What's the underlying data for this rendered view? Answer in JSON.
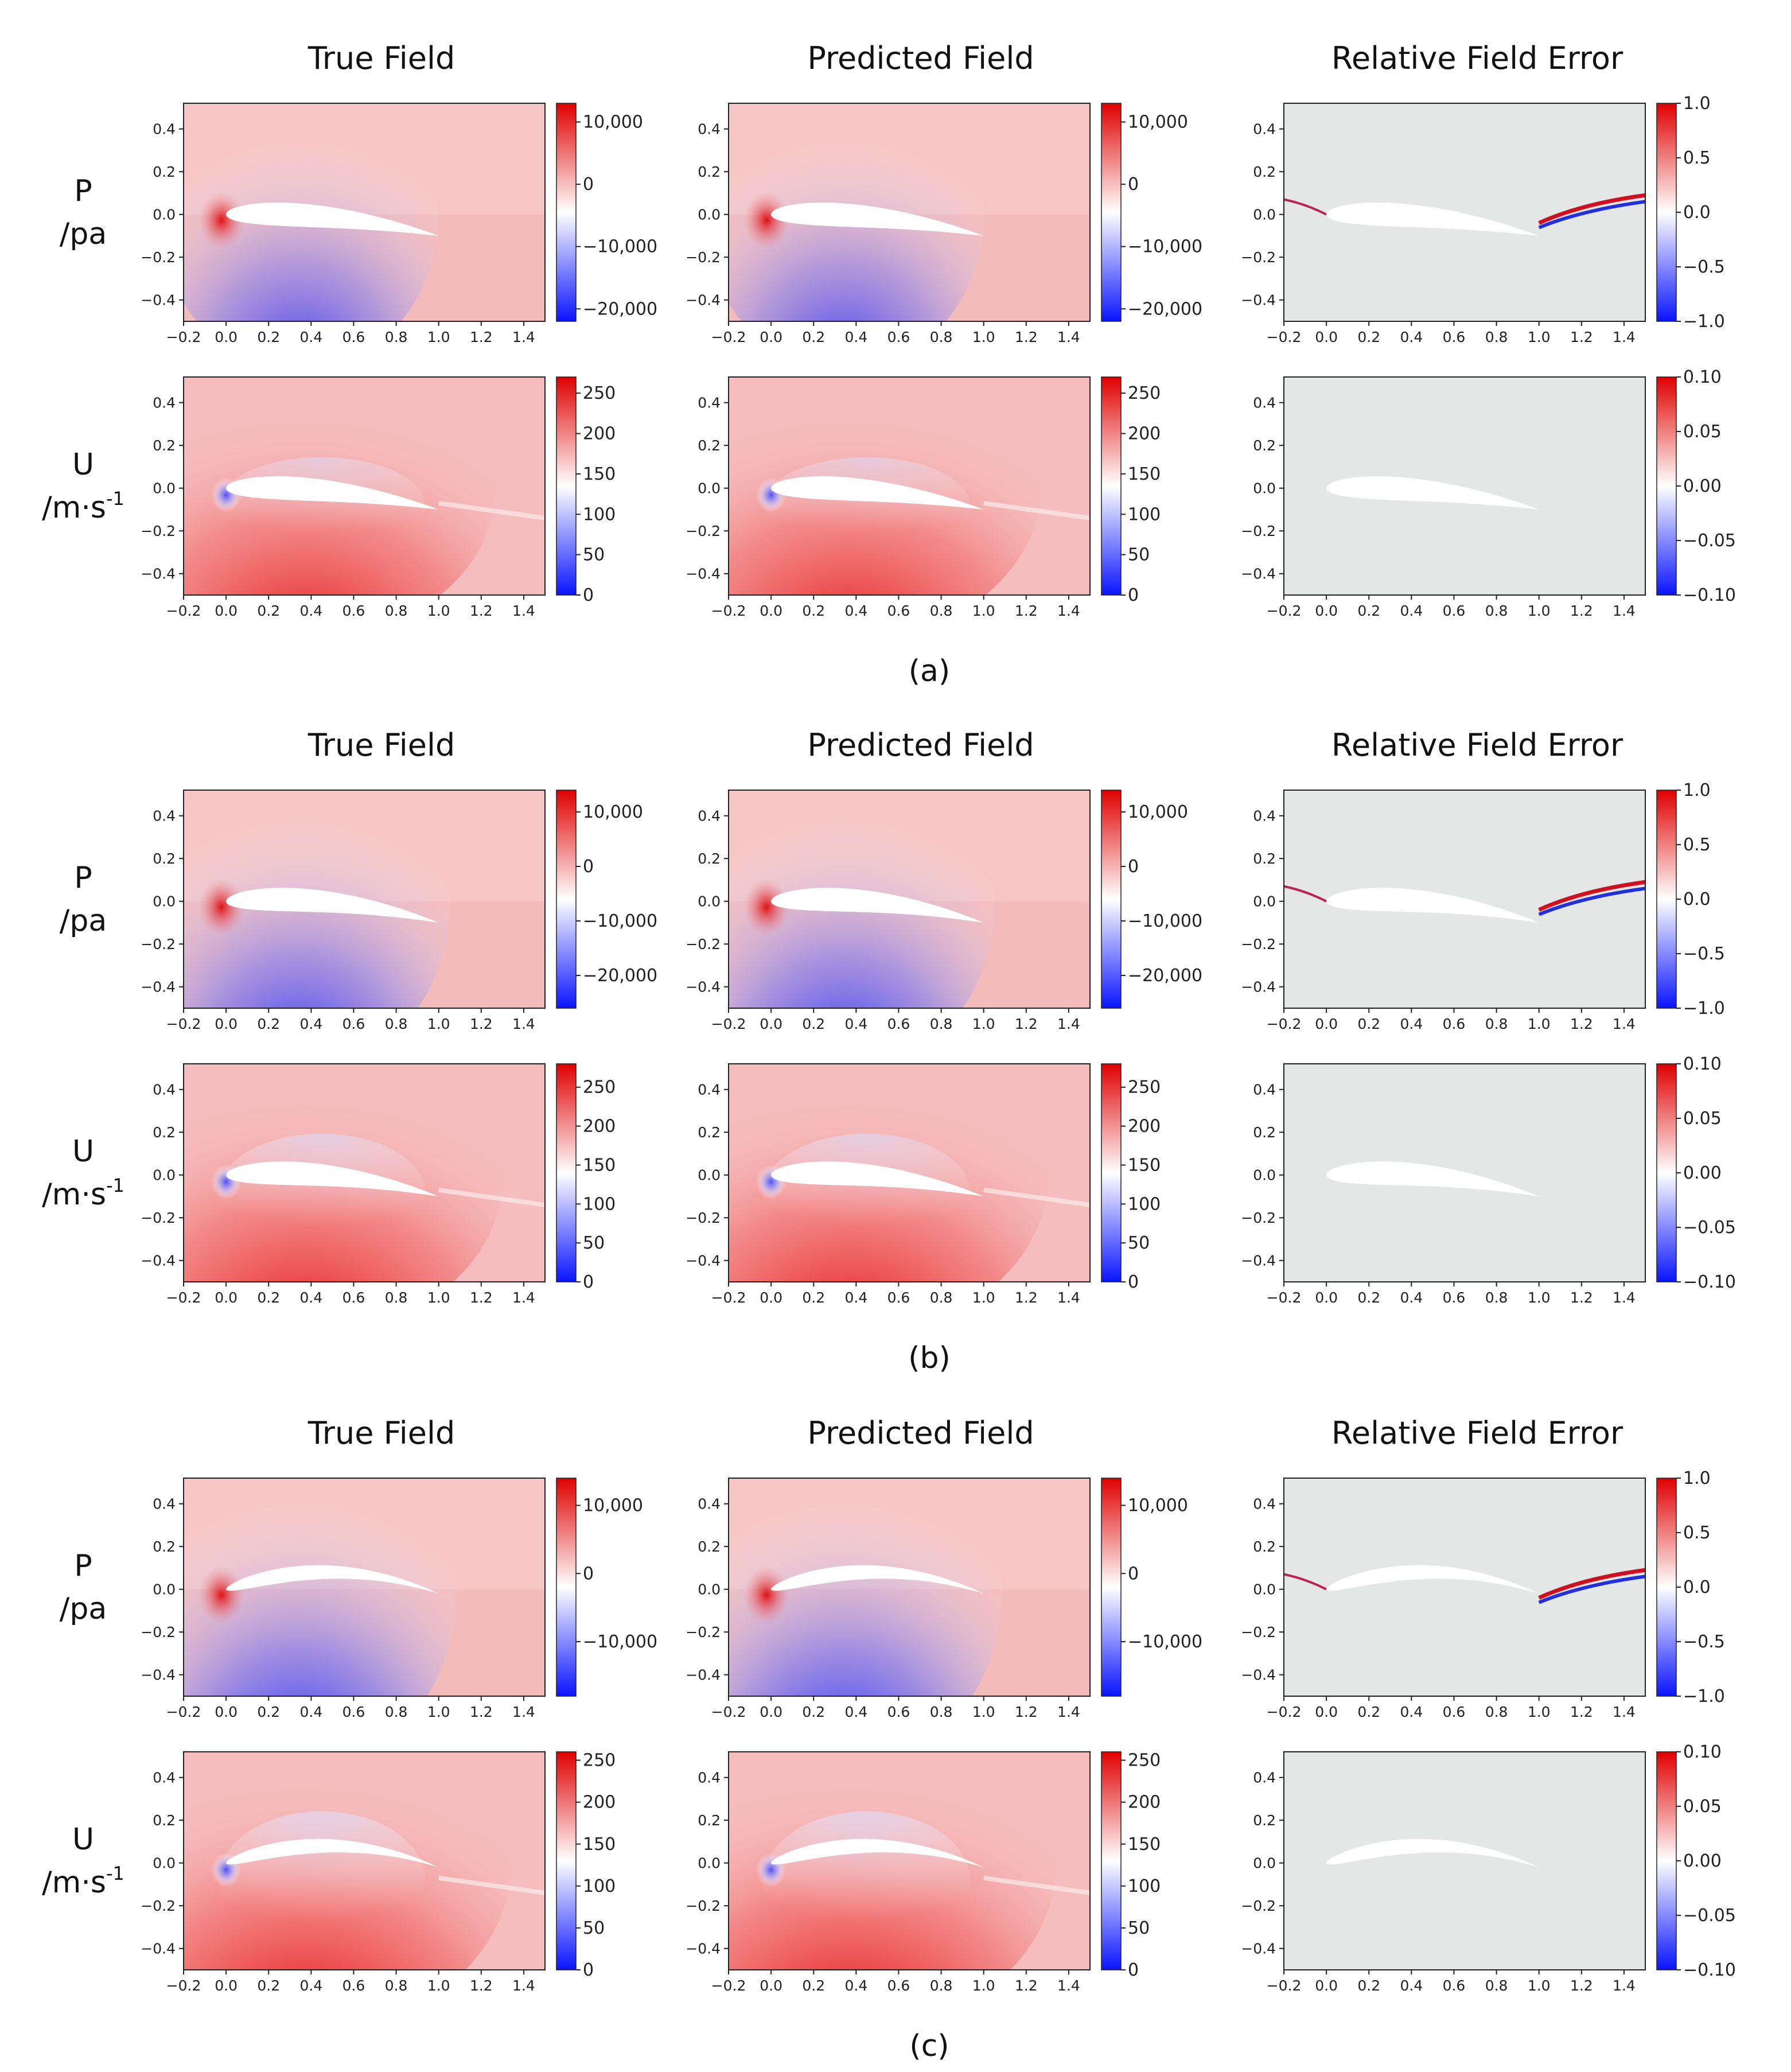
{
  "figure": {
    "caption_labels": [
      "(a)",
      "(b)",
      "(c)"
    ],
    "column_titles": [
      "True Field",
      "Predicted Field",
      "Relative Field Error"
    ],
    "row_labels": [
      {
        "var": "P",
        "unit": "/pa"
      },
      {
        "var": "U",
        "unit": "/m·s",
        "exponent": "-1"
      }
    ]
  },
  "colors": {
    "diverging_low": "#0a14ff",
    "diverging_mid": "#ffffff",
    "diverging_high": "#e00000",
    "error_background": "#e4e7e5",
    "airfoil": "#ffffff"
  },
  "chart_data": [
    {
      "type": "heatmap",
      "panel": "(a)",
      "column": "True Field",
      "field": "P",
      "unit": "pa",
      "xlim": [
        -0.2,
        1.5
      ],
      "ylim": [
        -0.5,
        0.52
      ],
      "xticks": [
        "-0.2",
        "0.0",
        "0.2",
        "0.4",
        "0.6",
        "0.8",
        "1.0",
        "1.2",
        "1.4"
      ],
      "yticks": [
        "0.4",
        "0.2",
        "0.0",
        "-0.2",
        "-0.4"
      ],
      "colorbar": {
        "min": -22000,
        "max": 13000,
        "ticks": [
          "10,000",
          "0",
          "-10,000",
          "-20,000"
        ],
        "tick_values": [
          10000,
          0,
          -10000,
          -20000
        ]
      }
    },
    {
      "type": "heatmap",
      "panel": "(a)",
      "column": "Predicted Field",
      "field": "P",
      "unit": "pa",
      "xlim": [
        -0.2,
        1.5
      ],
      "ylim": [
        -0.5,
        0.52
      ],
      "xticks": [
        "-0.2",
        "0.0",
        "0.2",
        "0.4",
        "0.6",
        "0.8",
        "1.0",
        "1.2",
        "1.4"
      ],
      "yticks": [
        "0.4",
        "0.2",
        "0.0",
        "-0.2",
        "-0.4"
      ],
      "colorbar": {
        "min": -22000,
        "max": 13000,
        "ticks": [
          "10,000",
          "0",
          "-10,000",
          "-20,000"
        ],
        "tick_values": [
          10000,
          0,
          -10000,
          -20000
        ]
      }
    },
    {
      "type": "heatmap",
      "panel": "(a)",
      "column": "Relative Field Error",
      "field": "P",
      "xlim": [
        -0.2,
        1.5
      ],
      "ylim": [
        -0.5,
        0.52
      ],
      "xticks": [
        "-0.2",
        "0.0",
        "0.2",
        "0.4",
        "0.6",
        "0.8",
        "1.0",
        "1.2",
        "1.4"
      ],
      "yticks": [
        "0.4",
        "0.2",
        "0.0",
        "-0.2",
        "-0.4"
      ],
      "colorbar": {
        "min": -1.0,
        "max": 1.0,
        "ticks": [
          "1.0",
          "0.5",
          "0.0",
          "-0.5",
          "-1.0"
        ],
        "tick_values": [
          1.0,
          0.5,
          0.0,
          -0.5,
          -1.0
        ]
      }
    },
    {
      "type": "heatmap",
      "panel": "(a)",
      "column": "True Field",
      "field": "U",
      "unit": "m/s",
      "xlim": [
        -0.2,
        1.5
      ],
      "ylim": [
        -0.5,
        0.52
      ],
      "xticks": [
        "-0.2",
        "0.0",
        "0.2",
        "0.4",
        "0.6",
        "0.8",
        "1.0",
        "1.2",
        "1.4"
      ],
      "yticks": [
        "0.4",
        "0.2",
        "0.0",
        "-0.2",
        "-0.4"
      ],
      "colorbar": {
        "min": 0,
        "max": 270,
        "ticks": [
          "250",
          "200",
          "150",
          "100",
          "50",
          "0"
        ],
        "tick_values": [
          250,
          200,
          150,
          100,
          50,
          0
        ]
      }
    },
    {
      "type": "heatmap",
      "panel": "(a)",
      "column": "Predicted Field",
      "field": "U",
      "unit": "m/s",
      "xlim": [
        -0.2,
        1.5
      ],
      "ylim": [
        -0.5,
        0.52
      ],
      "xticks": [
        "-0.2",
        "0.0",
        "0.2",
        "0.4",
        "0.6",
        "0.8",
        "1.0",
        "1.2",
        "1.4"
      ],
      "yticks": [
        "0.4",
        "0.2",
        "0.0",
        "-0.2",
        "-0.4"
      ],
      "colorbar": {
        "min": 0,
        "max": 270,
        "ticks": [
          "250",
          "200",
          "150",
          "100",
          "50",
          "0"
        ],
        "tick_values": [
          250,
          200,
          150,
          100,
          50,
          0
        ]
      }
    },
    {
      "type": "heatmap",
      "panel": "(a)",
      "column": "Relative Field Error",
      "field": "U",
      "xlim": [
        -0.2,
        1.5
      ],
      "ylim": [
        -0.5,
        0.52
      ],
      "xticks": [
        "-0.2",
        "0.0",
        "0.2",
        "0.4",
        "0.6",
        "0.8",
        "1.0",
        "1.2",
        "1.4"
      ],
      "yticks": [
        "0.4",
        "0.2",
        "0.0",
        "-0.2",
        "-0.4"
      ],
      "colorbar": {
        "min": -0.1,
        "max": 0.1,
        "ticks": [
          "0.10",
          "0.05",
          "0.00",
          "-0.05",
          "-0.10"
        ],
        "tick_values": [
          0.1,
          0.05,
          0.0,
          -0.05,
          -0.1
        ]
      }
    },
    {
      "type": "heatmap",
      "panel": "(b)",
      "column": "True Field",
      "field": "P",
      "unit": "pa",
      "xlim": [
        -0.2,
        1.5
      ],
      "ylim": [
        -0.5,
        0.52
      ],
      "xticks": [
        "-0.2",
        "0.0",
        "0.2",
        "0.4",
        "0.6",
        "0.8",
        "1.0",
        "1.2",
        "1.4"
      ],
      "yticks": [
        "0.4",
        "0.2",
        "0.0",
        "-0.2",
        "-0.4"
      ],
      "colorbar": {
        "min": -26000,
        "max": 14000,
        "ticks": [
          "10,000",
          "0",
          "-10,000",
          "-20,000"
        ],
        "tick_values": [
          10000,
          0,
          -10000,
          -20000
        ]
      }
    },
    {
      "type": "heatmap",
      "panel": "(b)",
      "column": "Predicted Field",
      "field": "P",
      "unit": "pa",
      "xlim": [
        -0.2,
        1.5
      ],
      "ylim": [
        -0.5,
        0.52
      ],
      "xticks": [
        "-0.2",
        "0.0",
        "0.2",
        "0.4",
        "0.6",
        "0.8",
        "1.0",
        "1.2",
        "1.4"
      ],
      "yticks": [
        "0.4",
        "0.2",
        "0.0",
        "-0.2",
        "-0.4"
      ],
      "colorbar": {
        "min": -26000,
        "max": 14000,
        "ticks": [
          "10,000",
          "0",
          "-10,000",
          "-20,000"
        ],
        "tick_values": [
          10000,
          0,
          -10000,
          -20000
        ]
      }
    },
    {
      "type": "heatmap",
      "panel": "(b)",
      "column": "Relative Field Error",
      "field": "P",
      "xlim": [
        -0.2,
        1.5
      ],
      "ylim": [
        -0.5,
        0.52
      ],
      "xticks": [
        "-0.2",
        "0.0",
        "0.2",
        "0.4",
        "0.6",
        "0.8",
        "1.0",
        "1.2",
        "1.4"
      ],
      "yticks": [
        "0.4",
        "0.2",
        "0.0",
        "-0.2",
        "-0.4"
      ],
      "colorbar": {
        "min": -1.0,
        "max": 1.0,
        "ticks": [
          "1.0",
          "0.5",
          "0.0",
          "-0.5",
          "-1.0"
        ],
        "tick_values": [
          1.0,
          0.5,
          0.0,
          -0.5,
          -1.0
        ]
      }
    },
    {
      "type": "heatmap",
      "panel": "(b)",
      "column": "True Field",
      "field": "U",
      "unit": "m/s",
      "xlim": [
        -0.2,
        1.5
      ],
      "ylim": [
        -0.5,
        0.52
      ],
      "xticks": [
        "-0.2",
        "0.0",
        "0.2",
        "0.4",
        "0.6",
        "0.8",
        "1.0",
        "1.2",
        "1.4"
      ],
      "yticks": [
        "0.4",
        "0.2",
        "0.0",
        "-0.2",
        "-0.4"
      ],
      "colorbar": {
        "min": 0,
        "max": 280,
        "ticks": [
          "250",
          "200",
          "150",
          "100",
          "50",
          "0"
        ],
        "tick_values": [
          250,
          200,
          150,
          100,
          50,
          0
        ]
      }
    },
    {
      "type": "heatmap",
      "panel": "(b)",
      "column": "Predicted Field",
      "field": "U",
      "unit": "m/s",
      "xlim": [
        -0.2,
        1.5
      ],
      "ylim": [
        -0.5,
        0.52
      ],
      "xticks": [
        "-0.2",
        "0.0",
        "0.2",
        "0.4",
        "0.6",
        "0.8",
        "1.0",
        "1.2",
        "1.4"
      ],
      "yticks": [
        "0.4",
        "0.2",
        "0.0",
        "-0.2",
        "-0.4"
      ],
      "colorbar": {
        "min": 0,
        "max": 280,
        "ticks": [
          "250",
          "200",
          "150",
          "100",
          "50",
          "0"
        ],
        "tick_values": [
          250,
          200,
          150,
          100,
          50,
          0
        ]
      }
    },
    {
      "type": "heatmap",
      "panel": "(b)",
      "column": "Relative Field Error",
      "field": "U",
      "xlim": [
        -0.2,
        1.5
      ],
      "ylim": [
        -0.5,
        0.52
      ],
      "xticks": [
        "-0.2",
        "0.0",
        "0.2",
        "0.4",
        "0.6",
        "0.8",
        "1.0",
        "1.2",
        "1.4"
      ],
      "yticks": [
        "0.4",
        "0.2",
        "0.0",
        "-0.2",
        "-0.4"
      ],
      "colorbar": {
        "min": -0.1,
        "max": 0.1,
        "ticks": [
          "0.10",
          "0.05",
          "0.00",
          "-0.05",
          "-0.10"
        ],
        "tick_values": [
          0.1,
          0.05,
          0.0,
          -0.05,
          -0.1
        ]
      }
    },
    {
      "type": "heatmap",
      "panel": "(c)",
      "column": "True Field",
      "field": "P",
      "unit": "pa",
      "xlim": [
        -0.2,
        1.5
      ],
      "ylim": [
        -0.5,
        0.52
      ],
      "xticks": [
        "-0.2",
        "0.0",
        "0.2",
        "0.4",
        "0.6",
        "0.8",
        "1.0",
        "1.2",
        "1.4"
      ],
      "yticks": [
        "0.4",
        "0.2",
        "0.0",
        "-0.2",
        "-0.4"
      ],
      "colorbar": {
        "min": -18000,
        "max": 14000,
        "ticks": [
          "10,000",
          "0",
          "-10,000"
        ],
        "tick_values": [
          10000,
          0,
          -10000
        ]
      }
    },
    {
      "type": "heatmap",
      "panel": "(c)",
      "column": "Predicted Field",
      "field": "P",
      "unit": "pa",
      "xlim": [
        -0.2,
        1.5
      ],
      "ylim": [
        -0.5,
        0.52
      ],
      "xticks": [
        "-0.2",
        "0.0",
        "0.2",
        "0.4",
        "0.6",
        "0.8",
        "1.0",
        "1.2",
        "1.4"
      ],
      "yticks": [
        "0.4",
        "0.2",
        "0.0",
        "-0.2",
        "-0.4"
      ],
      "colorbar": {
        "min": -18000,
        "max": 14000,
        "ticks": [
          "10,000",
          "0",
          "-10,000"
        ],
        "tick_values": [
          10000,
          0,
          -10000
        ]
      }
    },
    {
      "type": "heatmap",
      "panel": "(c)",
      "column": "Relative Field Error",
      "field": "P",
      "xlim": [
        -0.2,
        1.5
      ],
      "ylim": [
        -0.5,
        0.52
      ],
      "xticks": [
        "-0.2",
        "0.0",
        "0.2",
        "0.4",
        "0.6",
        "0.8",
        "1.0",
        "1.2",
        "1.4"
      ],
      "yticks": [
        "0.4",
        "0.2",
        "0.0",
        "-0.2",
        "-0.4"
      ],
      "colorbar": {
        "min": -1.0,
        "max": 1.0,
        "ticks": [
          "1.0",
          "0.5",
          "0.0",
          "-0.5",
          "-1.0"
        ],
        "tick_values": [
          1.0,
          0.5,
          0.0,
          -0.5,
          -1.0
        ]
      }
    },
    {
      "type": "heatmap",
      "panel": "(c)",
      "column": "True Field",
      "field": "U",
      "unit": "m/s",
      "xlim": [
        -0.2,
        1.5
      ],
      "ylim": [
        -0.5,
        0.52
      ],
      "xticks": [
        "-0.2",
        "0.0",
        "0.2",
        "0.4",
        "0.6",
        "0.8",
        "1.0",
        "1.2",
        "1.4"
      ],
      "yticks": [
        "0.4",
        "0.2",
        "0.0",
        "-0.2",
        "-0.4"
      ],
      "colorbar": {
        "min": 0,
        "max": 260,
        "ticks": [
          "250",
          "200",
          "150",
          "100",
          "50",
          "0"
        ],
        "tick_values": [
          250,
          200,
          150,
          100,
          50,
          0
        ]
      }
    },
    {
      "type": "heatmap",
      "panel": "(c)",
      "column": "Predicted Field",
      "field": "U",
      "unit": "m/s",
      "xlim": [
        -0.2,
        1.5
      ],
      "ylim": [
        -0.5,
        0.52
      ],
      "xticks": [
        "-0.2",
        "0.0",
        "0.2",
        "0.4",
        "0.6",
        "0.8",
        "1.0",
        "1.2",
        "1.4"
      ],
      "yticks": [
        "0.4",
        "0.2",
        "0.0",
        "-0.2",
        "-0.4"
      ],
      "colorbar": {
        "min": 0,
        "max": 260,
        "ticks": [
          "250",
          "200",
          "150",
          "100",
          "50",
          "0"
        ],
        "tick_values": [
          250,
          200,
          150,
          100,
          50,
          0
        ]
      }
    },
    {
      "type": "heatmap",
      "panel": "(c)",
      "column": "Relative Field Error",
      "field": "U",
      "xlim": [
        -0.2,
        1.5
      ],
      "ylim": [
        -0.5,
        0.52
      ],
      "xticks": [
        "-0.2",
        "0.0",
        "0.2",
        "0.4",
        "0.6",
        "0.8",
        "1.0",
        "1.2",
        "1.4"
      ],
      "yticks": [
        "0.4",
        "0.2",
        "0.0",
        "-0.2",
        "-0.4"
      ],
      "colorbar": {
        "min": -0.1,
        "max": 0.1,
        "ticks": [
          "0.10",
          "0.05",
          "0.00",
          "-0.05",
          "-0.10"
        ],
        "tick_values": [
          0.1,
          0.05,
          0.0,
          -0.05,
          -0.1
        ]
      }
    }
  ]
}
